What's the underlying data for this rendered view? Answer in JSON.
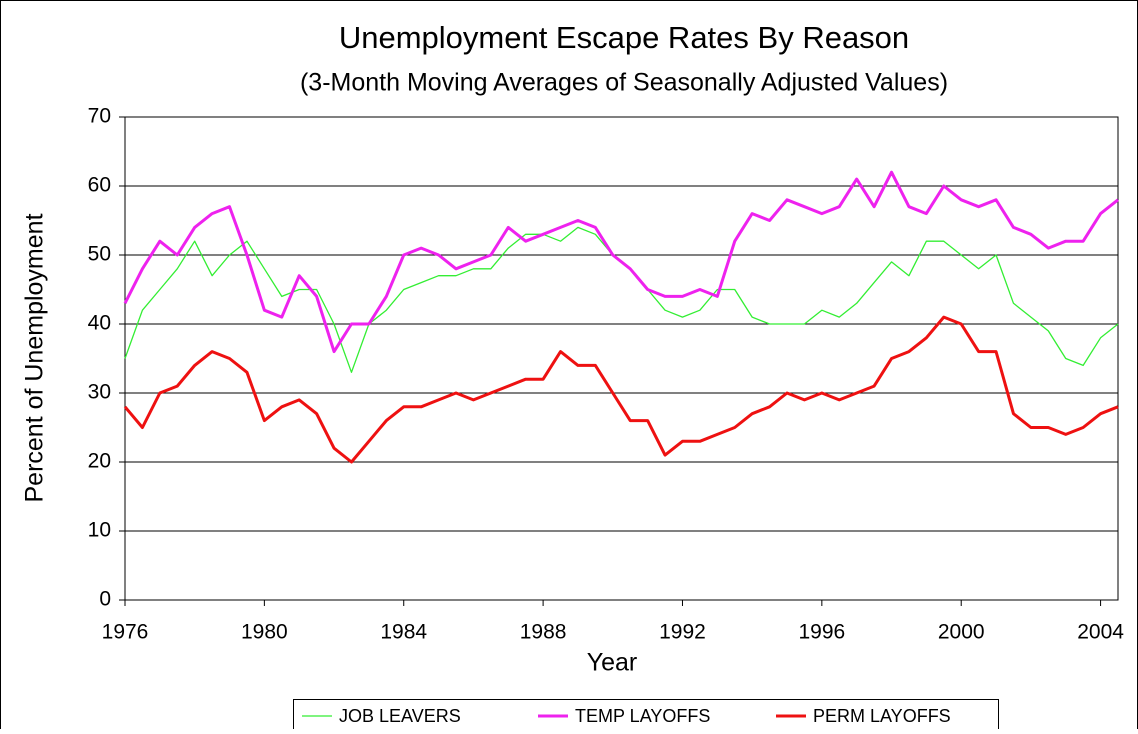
{
  "chart_data": {
    "type": "line",
    "title": "Unemployment Escape Rates By Reason",
    "subtitle": "(3-Month Moving Averages of Seasonally Adjusted Values)",
    "x_label": "Year",
    "y_label": "Percent of Unemployment",
    "x": [
      1976,
      1976.5,
      1977,
      1977.5,
      1978,
      1978.5,
      1979,
      1979.5,
      1980,
      1980.5,
      1981,
      1981.5,
      1982,
      1982.5,
      1983,
      1983.5,
      1984,
      1984.5,
      1985,
      1985.5,
      1986,
      1986.5,
      1987,
      1987.5,
      1988,
      1988.5,
      1989,
      1989.5,
      1990,
      1990.5,
      1991,
      1991.5,
      1992,
      1992.5,
      1993,
      1993.5,
      1994,
      1994.5,
      1995,
      1995.5,
      1996,
      1996.5,
      1997,
      1997.5,
      1998,
      1998.5,
      1999,
      1999.5,
      2000,
      2000.5,
      2001,
      2001.5,
      2002,
      2002.5,
      2003,
      2003.5,
      2004,
      2004.5
    ],
    "xlim": [
      1976,
      2004.5
    ],
    "xticks": [
      1976,
      1980,
      1984,
      1988,
      1992,
      1996,
      2000,
      2004
    ],
    "ylim": [
      0,
      70
    ],
    "yticks": [
      0,
      10,
      20,
      30,
      40,
      50,
      60,
      70
    ],
    "grid": true,
    "series": [
      {
        "name": "JOB LEAVERS",
        "color": "#33ee33",
        "line_width": 1.3,
        "values": [
          35,
          42,
          45,
          48,
          52,
          47,
          50,
          52,
          48,
          44,
          45,
          45,
          40,
          33,
          40,
          42,
          45,
          46,
          47,
          47,
          48,
          48,
          51,
          53,
          53,
          52,
          54,
          53,
          50,
          48,
          45,
          42,
          41,
          42,
          45,
          45,
          41,
          40,
          40,
          40,
          42,
          41,
          43,
          46,
          49,
          47,
          52,
          52,
          50,
          48,
          50,
          43,
          41,
          39,
          35,
          34,
          38,
          40
        ]
      },
      {
        "name": "TEMP LAYOFFS",
        "color": "#ee22ee",
        "line_width": 3,
        "values": [
          43,
          48,
          52,
          50,
          54,
          56,
          57,
          50,
          42,
          41,
          47,
          44,
          36,
          40,
          40,
          44,
          50,
          51,
          50,
          48,
          49,
          50,
          54,
          52,
          53,
          54,
          55,
          54,
          50,
          48,
          45,
          44,
          44,
          45,
          44,
          52,
          56,
          55,
          58,
          57,
          56,
          57,
          61,
          57,
          62,
          57,
          56,
          60,
          58,
          57,
          58,
          54,
          53,
          51,
          52,
          52,
          56,
          58
        ]
      },
      {
        "name": "PERM LAYOFFS",
        "color": "#ee1111",
        "line_width": 3,
        "values": [
          28,
          25,
          30,
          31,
          34,
          36,
          35,
          33,
          26,
          28,
          29,
          27,
          22,
          20,
          23,
          26,
          28,
          28,
          29,
          30,
          29,
          30,
          31,
          32,
          32,
          36,
          34,
          34,
          30,
          26,
          26,
          21,
          23,
          23,
          24,
          25,
          27,
          28,
          30,
          29,
          30,
          29,
          30,
          31,
          35,
          36,
          38,
          41,
          40,
          36,
          36,
          27,
          25,
          25,
          24,
          25,
          27,
          28
        ]
      }
    ]
  }
}
